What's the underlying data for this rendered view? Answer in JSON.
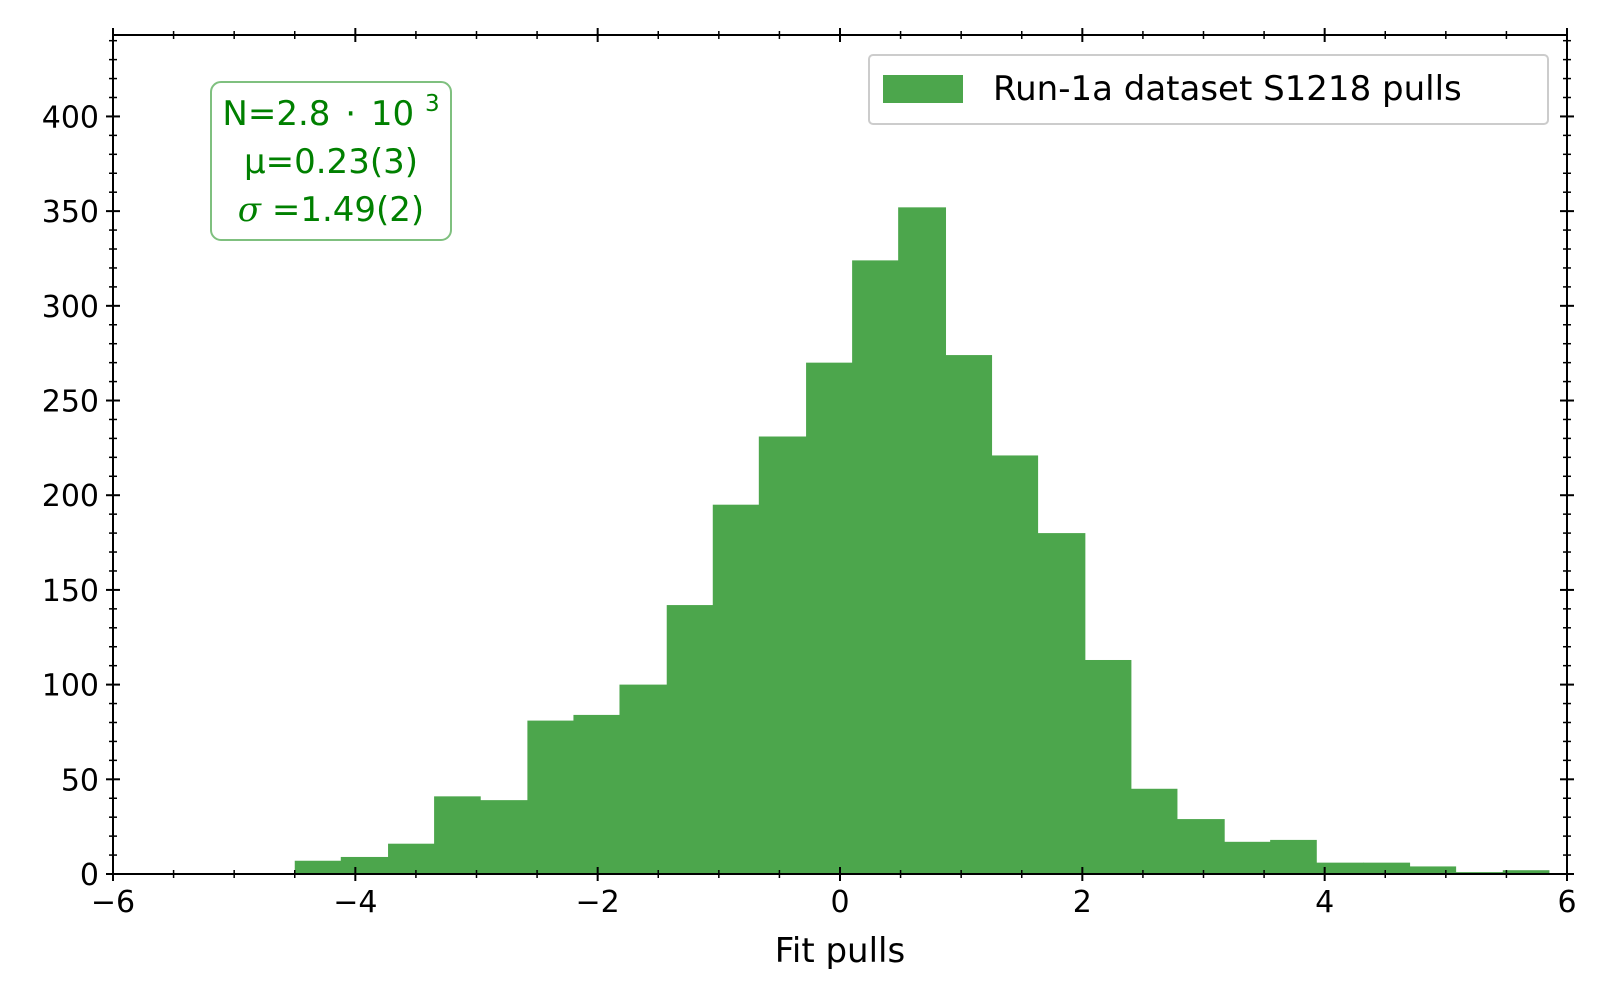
{
  "chart_data": {
    "type": "bar",
    "title": "",
    "xlabel": "Fit pulls",
    "ylabel": "",
    "xlim": [
      -6,
      6
    ],
    "ylim": [
      0,
      443
    ],
    "xticks": [
      -6,
      -4,
      -2,
      0,
      2,
      4,
      6
    ],
    "xtick_labels": [
      "−6",
      "−4",
      "−2",
      "0",
      "2",
      "4",
      "6"
    ],
    "yticks": [
      0,
      50,
      100,
      150,
      200,
      250,
      300,
      350,
      400
    ],
    "ytick_labels": [
      "0",
      "50",
      "100",
      "150",
      "200",
      "250",
      "300",
      "350",
      "400"
    ],
    "grid": false,
    "legend_position": "top-right",
    "bin_edges": [
      -4.5,
      -4.12,
      -3.73,
      -3.35,
      -2.97,
      -2.58,
      -2.2,
      -1.82,
      -1.43,
      -1.05,
      -0.67,
      -0.28,
      0.1,
      0.48,
      0.87,
      1.25,
      1.63,
      2.02,
      2.4,
      2.78,
      3.17,
      3.55,
      3.93,
      4.32,
      4.7,
      5.08,
      5.47,
      5.85
    ],
    "series": [
      {
        "name": "Run-1a dataset S1218 pulls",
        "color": "#4ca64c",
        "values": [
          7,
          9,
          16,
          41,
          39,
          81,
          84,
          100,
          142,
          195,
          231,
          270,
          324,
          352,
          274,
          221,
          180,
          113,
          45,
          29,
          17,
          18,
          6,
          6,
          4,
          1,
          2
        ]
      }
    ],
    "stats_box": {
      "n_label": "N=2.8",
      "n_dot": "·",
      "n_base": "10",
      "n_exp": "3",
      "mu_line": "μ=0.23(3)",
      "sigma_symbol": "σ",
      "sigma_rest": "=1.49(2)",
      "text_color": "#008000",
      "border_color": "#7fc07f",
      "position": "top-left"
    }
  }
}
